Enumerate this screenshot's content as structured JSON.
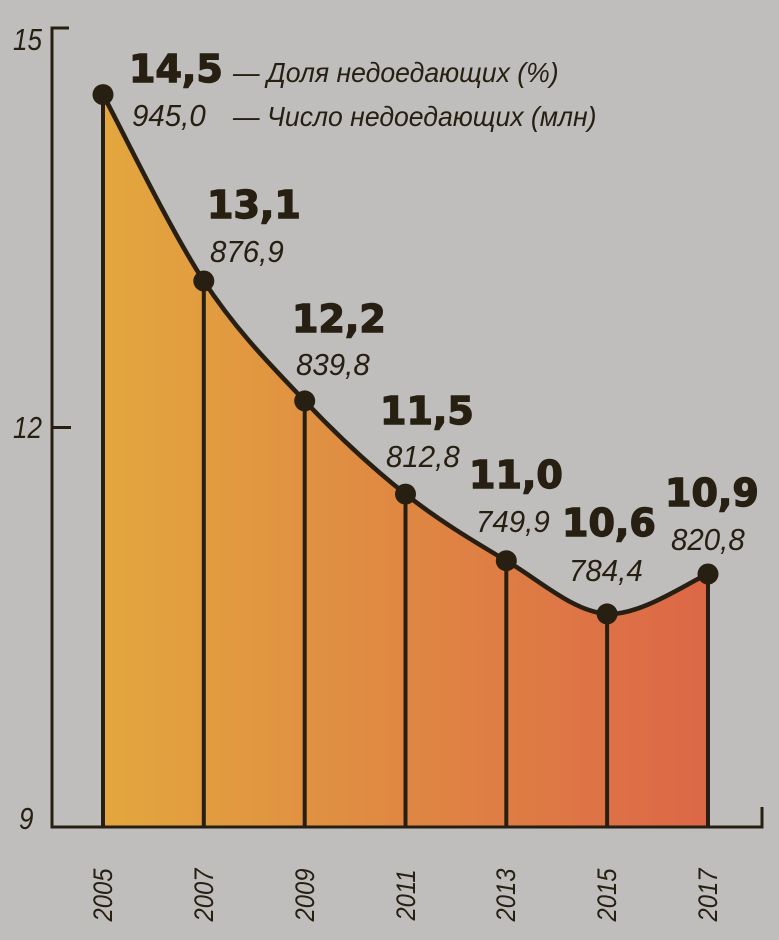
{
  "colors": {
    "background": "#bfbebc",
    "ink": "#272012",
    "gradient_left": "#e3a73e",
    "gradient_right": "#dc6747"
  },
  "chart_data": {
    "type": "area",
    "title": "",
    "x": [
      2005,
      2007,
      2009,
      2011,
      2013,
      2015,
      2017
    ],
    "series": [
      {
        "name": "Доля недоедающих (%)",
        "values": [
          14.5,
          13.1,
          12.2,
          11.5,
          11.0,
          10.6,
          10.9
        ]
      },
      {
        "name": "Число недоедающих (млн)",
        "values": [
          945.0,
          876.9,
          839.8,
          812.8,
          749.9,
          784.4,
          820.8
        ]
      }
    ],
    "xlabel": "",
    "ylabel": "",
    "ylim": [
      9,
      15
    ],
    "yticks": [
      15,
      12,
      9
    ],
    "grid": false,
    "legend_position": "top, right of first data point",
    "marker": "filled-circle",
    "drop_lines": true,
    "area_gradient": [
      "#e3a73e",
      "#dc6747"
    ]
  },
  "labels": {
    "yticks": [
      "15",
      "12",
      "9"
    ],
    "years": [
      "2005",
      "2007",
      "2009",
      "2011",
      "2013",
      "2015",
      "2017"
    ],
    "legend": [
      "— Доля недоедающих (%)",
      "— Число недоедающих (млн)"
    ],
    "points": [
      {
        "year": "2005",
        "pct": "14,5",
        "mln": "945,0"
      },
      {
        "year": "2007",
        "pct": "13,1",
        "mln": "876,9"
      },
      {
        "year": "2009",
        "pct": "12,2",
        "mln": "839,8"
      },
      {
        "year": "2011",
        "pct": "11,5",
        "mln": "812,8"
      },
      {
        "year": "2013",
        "pct": "11,0",
        "mln": "749,9"
      },
      {
        "year": "2015",
        "pct": "10,6",
        "mln": "784,4"
      },
      {
        "year": "2017",
        "pct": "10,9",
        "mln": "820,8"
      }
    ]
  }
}
